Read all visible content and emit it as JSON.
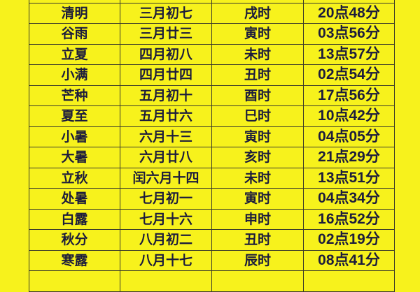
{
  "table": {
    "rows": [
      [
        "清明",
        "三月初七",
        "戌时",
        "20点48分"
      ],
      [
        "谷雨",
        "三月廿三",
        "寅时",
        "03点56分"
      ],
      [
        "立夏",
        "四月初八",
        "未时",
        "13点57分"
      ],
      [
        "小满",
        "四月廿四",
        "丑时",
        "02点54分"
      ],
      [
        "芒种",
        "五月初十",
        "酉时",
        "17点56分"
      ],
      [
        "夏至",
        "五月廿六",
        "巳时",
        "10点42分"
      ],
      [
        "小暑",
        "六月十三",
        "寅时",
        "04点05分"
      ],
      [
        "大暑",
        "六月廿八",
        "亥时",
        "21点29分"
      ],
      [
        "立秋",
        "闰六月十四",
        "未时",
        "13点51分"
      ],
      [
        "处暑",
        "七月初一",
        "寅时",
        "04点34分"
      ],
      [
        "白露",
        "七月十六",
        "申时",
        "16点52分"
      ],
      [
        "秋分",
        "八月初二",
        "丑时",
        "02点19分"
      ],
      [
        "寒露",
        "八月十七",
        "辰时",
        "08点41分"
      ]
    ]
  },
  "colors": {
    "background": "#f7f21c",
    "text": "#1c1c3c"
  }
}
